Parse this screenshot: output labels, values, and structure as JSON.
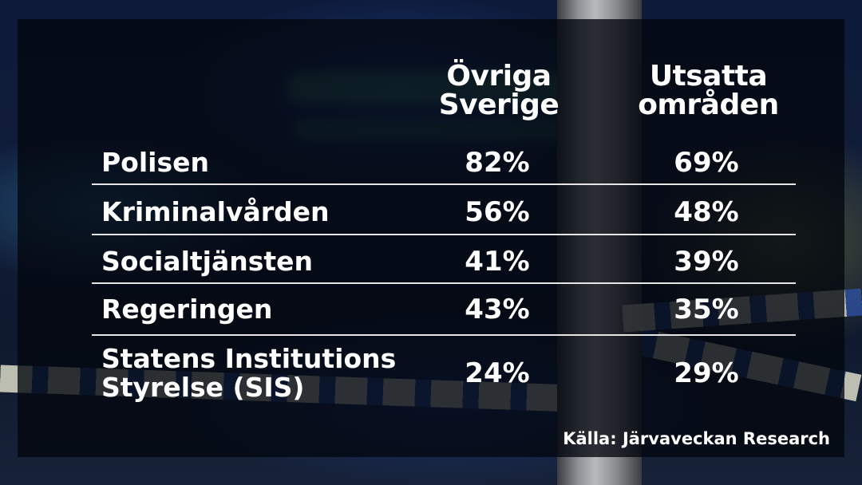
{
  "chart_data": {
    "type": "table",
    "columns": [
      {
        "line1": "Övriga",
        "line2": "Sverige"
      },
      {
        "line1": "Utsatta",
        "line2": "områden"
      }
    ],
    "rows": [
      {
        "label_line1": "Polisen",
        "label_line2": "",
        "values": [
          "82%",
          "69%"
        ]
      },
      {
        "label_line1": "Kriminalvården",
        "label_line2": "",
        "values": [
          "56%",
          "48%"
        ]
      },
      {
        "label_line1": "Socialtjänsten",
        "label_line2": "",
        "values": [
          "41%",
          "39%"
        ]
      },
      {
        "label_line1": "Regeringen",
        "label_line2": "",
        "values": [
          "43%",
          "35%"
        ]
      },
      {
        "label_line1": "Statens Institutions",
        "label_line2": "Styrelse (SIS)",
        "values": [
          "24%",
          "29%"
        ]
      }
    ],
    "series": [
      {
        "name": "Övriga Sverige",
        "values": [
          82,
          56,
          41,
          43,
          24
        ]
      },
      {
        "name": "Utsatta områden",
        "values": [
          69,
          48,
          39,
          35,
          29
        ]
      }
    ],
    "source": "Källa: Järvaveckan Research"
  }
}
